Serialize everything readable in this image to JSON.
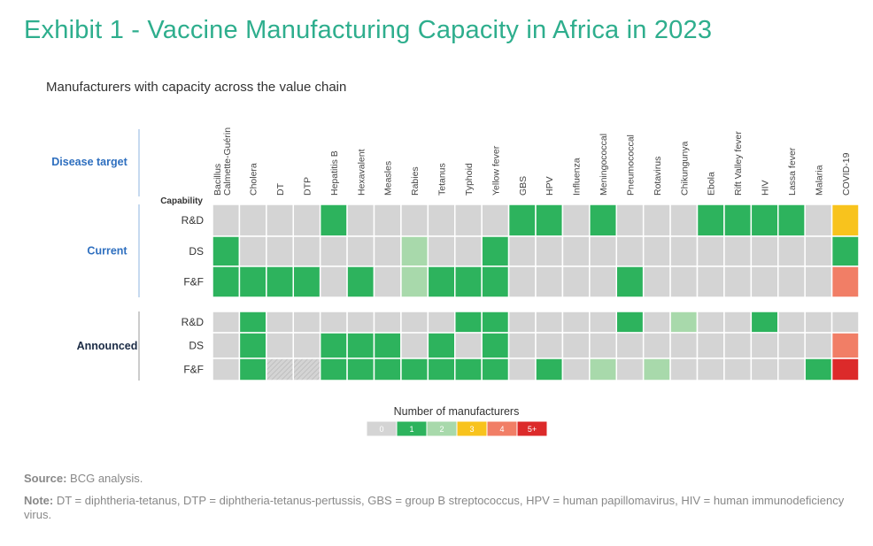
{
  "title": "Exhibit 1 - Vaccine Manufacturing Capacity in Africa in 2023",
  "subtitle": "Manufacturers with capacity across the value chain",
  "colors": {
    "title": "#2eae8d",
    "section_blue": "#2e6fbf",
    "section_dark": "#1b2b45",
    "scale": [
      "#d4d4d4",
      "#2db35d",
      "#a8d9ab",
      "#f8c31d",
      "#f17e66",
      "#dc2a2a"
    ],
    "stripe": "#bfbfbf"
  },
  "chart_data": {
    "type": "heatmap",
    "title": "Exhibit 1 - Vaccine Manufacturing Capacity in Africa in 2023",
    "subtitle": "Manufacturers with capacity across the value chain",
    "column_header_label": "Disease target",
    "row_header_label": "Capability",
    "columns": [
      [
        "Bacillus",
        "Calmette-Guérin"
      ],
      [
        "Cholera"
      ],
      [
        "DT"
      ],
      [
        "DTP"
      ],
      [
        "Hepatitis B"
      ],
      [
        "Hexavalent"
      ],
      [
        "Measles"
      ],
      [
        "Rabies"
      ],
      [
        "Tetanus"
      ],
      [
        "Typhoid"
      ],
      [
        "Yellow fever"
      ],
      [
        "GBS"
      ],
      [
        "HPV"
      ],
      [
        "Influenza"
      ],
      [
        "Meningococcal"
      ],
      [
        "Pneumococcal"
      ],
      [
        "Rotavirus"
      ],
      [
        "Chikungunya"
      ],
      [
        "Ebola"
      ],
      [
        "Rift Valley fever"
      ],
      [
        "HIV"
      ],
      [
        "Lassa fever"
      ],
      [
        "Malaria"
      ],
      [
        "COVID-19"
      ]
    ],
    "groups": [
      {
        "name": "Current",
        "rows": [
          {
            "capability": "R&D",
            "values": [
              0,
              0,
              0,
              0,
              1,
              0,
              0,
              0,
              0,
              0,
              0,
              1,
              1,
              0,
              1,
              0,
              0,
              0,
              1,
              1,
              1,
              1,
              0,
              3
            ]
          },
          {
            "capability": "DS",
            "values": [
              1,
              0,
              0,
              0,
              0,
              0,
              0,
              2,
              0,
              0,
              1,
              0,
              0,
              0,
              0,
              0,
              0,
              0,
              0,
              0,
              0,
              0,
              0,
              1
            ]
          },
          {
            "capability": "F&F",
            "values": [
              1,
              1,
              1,
              1,
              0,
              1,
              0,
              2,
              1,
              1,
              1,
              0,
              0,
              0,
              0,
              1,
              0,
              0,
              0,
              0,
              0,
              0,
              0,
              4
            ]
          }
        ]
      },
      {
        "name": "Announced",
        "rows": [
          {
            "capability": "R&D",
            "values": [
              0,
              1,
              0,
              0,
              0,
              0,
              0,
              0,
              0,
              1,
              1,
              0,
              0,
              0,
              0,
              1,
              0,
              2,
              0,
              0,
              1,
              0,
              0,
              0
            ]
          },
          {
            "capability": "DS",
            "values": [
              0,
              1,
              0,
              0,
              1,
              1,
              1,
              0,
              1,
              0,
              1,
              0,
              0,
              0,
              0,
              0,
              0,
              0,
              0,
              0,
              0,
              0,
              0,
              4
            ]
          },
          {
            "capability": "F&F",
            "values": [
              0,
              1,
              0,
              0,
              1,
              1,
              1,
              1,
              1,
              1,
              1,
              0,
              1,
              0,
              2,
              0,
              2,
              0,
              0,
              0,
              0,
              0,
              1,
              5
            ]
          }
        ]
      }
    ],
    "striped_cells": [
      [
        5,
        2
      ],
      [
        5,
        3
      ]
    ],
    "legend": {
      "title": "Number of manufacturers",
      "items": [
        "0",
        "1",
        "2",
        "3",
        "4",
        "5+"
      ]
    }
  },
  "footer": {
    "source_label": "Source:",
    "source_text": "BCG analysis.",
    "note_label": "Note:",
    "note_text": "DT = diphtheria-tetanus, DTP = diphtheria-tetanus-pertussis, GBS = group B streptococcus, HPV = human papillomavirus, HIV = human immunodeficiency virus."
  }
}
